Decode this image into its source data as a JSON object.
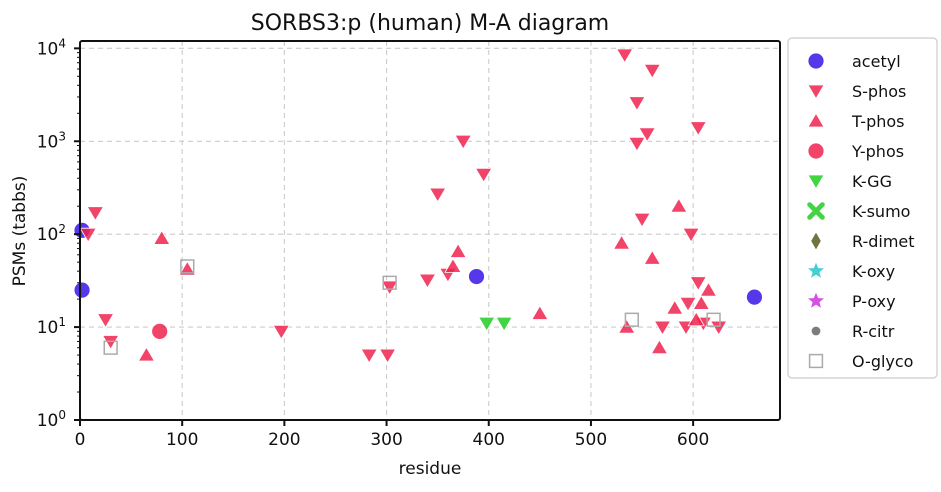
{
  "chart_data": {
    "type": "scatter",
    "title": "SORBS3:p (human) M-A diagram",
    "xlabel": "residue",
    "ylabel": "PSMs (tabbs)",
    "xlim": [
      0,
      685
    ],
    "ylim": [
      1,
      12000
    ],
    "yscale": "log",
    "xticks": [
      0,
      100,
      200,
      300,
      400,
      500,
      600
    ],
    "yticks": [
      {
        "value": 1,
        "base": "10",
        "exp": "0"
      },
      {
        "value": 10,
        "base": "10",
        "exp": "1"
      },
      {
        "value": 100,
        "base": "10",
        "exp": "2"
      },
      {
        "value": 1000,
        "base": "10",
        "exp": "3"
      },
      {
        "value": 10000,
        "base": "10",
        "exp": "4"
      }
    ],
    "grid": true,
    "legend_position": "right",
    "series": [
      {
        "name": "acetyl",
        "marker": "circle",
        "color": "#3a14e6",
        "points": [
          [
            2,
            25
          ],
          [
            2,
            110
          ],
          [
            388,
            35
          ],
          [
            660,
            21
          ]
        ]
      },
      {
        "name": "S-phos",
        "marker": "triangle-down",
        "color": "#f0224f",
        "points": [
          [
            15,
            170
          ],
          [
            8,
            100
          ],
          [
            25,
            12
          ],
          [
            30,
            7
          ],
          [
            197,
            9
          ],
          [
            283,
            5
          ],
          [
            301,
            5
          ],
          [
            303,
            27
          ],
          [
            340,
            32
          ],
          [
            350,
            270
          ],
          [
            360,
            37
          ],
          [
            375,
            1000
          ],
          [
            395,
            440
          ],
          [
            533,
            8500
          ],
          [
            560,
            5800
          ],
          [
            545,
            2600
          ],
          [
            555,
            1200
          ],
          [
            545,
            950
          ],
          [
            550,
            145
          ],
          [
            598,
            100
          ],
          [
            605,
            1400
          ],
          [
            605,
            30
          ],
          [
            570,
            10
          ],
          [
            593,
            10
          ],
          [
            610,
            11
          ],
          [
            595,
            18
          ],
          [
            625,
            10
          ]
        ]
      },
      {
        "name": "T-phos",
        "marker": "triangle-up",
        "color": "#f0224f",
        "points": [
          [
            80,
            90
          ],
          [
            105,
            42
          ],
          [
            65,
            5
          ],
          [
            365,
            45
          ],
          [
            370,
            65
          ],
          [
            450,
            14
          ],
          [
            530,
            80
          ],
          [
            535,
            10
          ],
          [
            560,
            55
          ],
          [
            567,
            6
          ],
          [
            582,
            16
          ],
          [
            586,
            200
          ],
          [
            603,
            12
          ],
          [
            608,
            18
          ],
          [
            615,
            25
          ]
        ]
      },
      {
        "name": "Y-phos",
        "marker": "circle",
        "color": "#f0224f",
        "points": [
          [
            78,
            9
          ]
        ]
      },
      {
        "name": "K-GG",
        "marker": "triangle-down",
        "color": "#22cc22",
        "points": [
          [
            398,
            11
          ],
          [
            415,
            11
          ]
        ]
      },
      {
        "name": "K-sumo",
        "marker": "x",
        "color": "#22cc22",
        "points": []
      },
      {
        "name": "R-dimet",
        "marker": "diamond",
        "color": "#5a5a1e",
        "points": []
      },
      {
        "name": "K-oxy",
        "marker": "star",
        "color": "#22c8cc",
        "points": []
      },
      {
        "name": "P-oxy",
        "marker": "star",
        "color": "#cc33dd",
        "points": []
      },
      {
        "name": "R-citr",
        "marker": "small-circle",
        "color": "#666666",
        "points": []
      },
      {
        "name": "O-glyco",
        "marker": "square-open",
        "color": "#aaaaaa",
        "points": [
          [
            30,
            6
          ],
          [
            105,
            45
          ],
          [
            303,
            30
          ],
          [
            540,
            12
          ],
          [
            620,
            12
          ]
        ]
      }
    ]
  }
}
